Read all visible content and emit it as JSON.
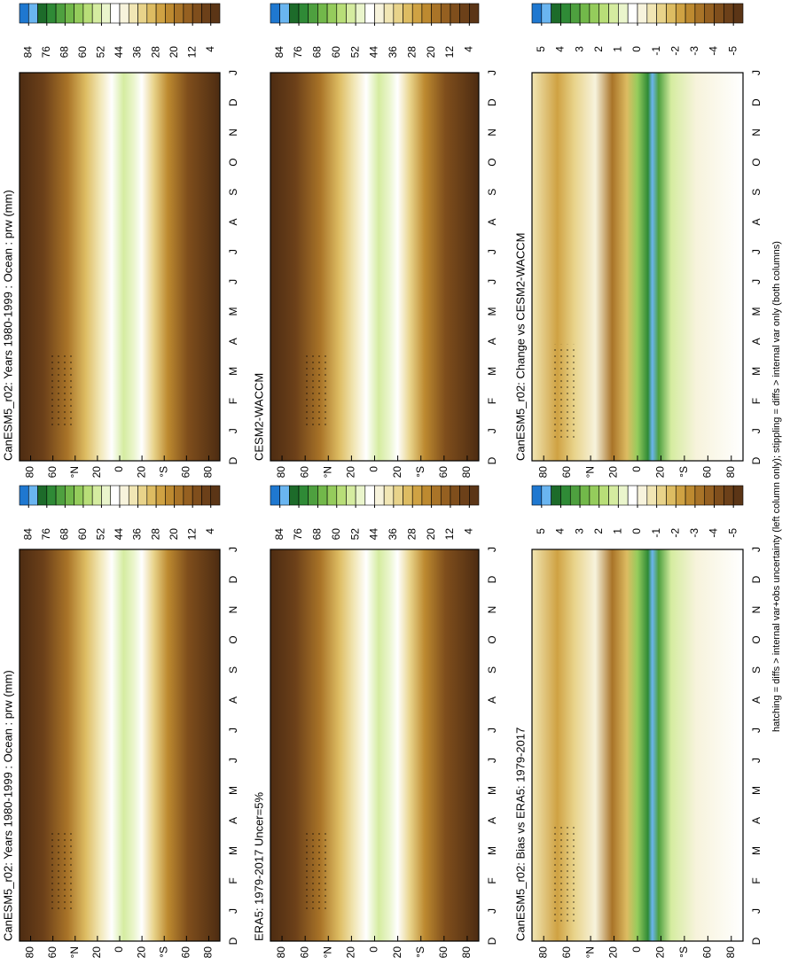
{
  "chart_data": [
    {
      "type": "contour",
      "title": "CanESM5_r02: Years 1980-1999 : Ocean : prw (mm)",
      "categories": [
        "D",
        "J",
        "F",
        "M",
        "A",
        "M",
        "J",
        "J",
        "A",
        "S",
        "O",
        "N",
        "D",
        "J"
      ],
      "ylim": [
        -90,
        90
      ],
      "yticks": [
        80,
        60,
        {
          "value": 40,
          "label": "°N"
        },
        20,
        0,
        {
          "value": -20,
          "label": "20"
        },
        {
          "value": -40,
          "label": "°S"
        },
        {
          "value": -60,
          "label": "60"
        },
        {
          "value": -80,
          "label": "80"
        }
      ],
      "colorbar": {
        "clim": [
          88,
          0
        ],
        "ticks": [
          84,
          76,
          68,
          60,
          52,
          44,
          36,
          28,
          20,
          12,
          4
        ],
        "colors": [
          "#1f78d0",
          "#6ab5f0",
          "#1d6b2a",
          "#2f8a36",
          "#4ea03f",
          "#72b84a",
          "#95cc5c",
          "#b8de78",
          "#d5eca0",
          "#eaf5cc",
          "#ffffff",
          "#f7f3dc",
          "#f1e6b4",
          "#e8d38a",
          "#ddbc62",
          "#cfa243",
          "#bd8a30",
          "#a97428",
          "#956021",
          "#7f4e1c",
          "#6c4019",
          "#5b3516"
        ]
      }
    },
    {
      "type": "contour",
      "title": "CESM2-WACCM",
      "categories": [
        "D",
        "J",
        "F",
        "M",
        "A",
        "M",
        "J",
        "J",
        "A",
        "S",
        "O",
        "N",
        "D",
        "J"
      ],
      "ylim": [
        -90,
        90
      ],
      "yticks": [
        80,
        60,
        {
          "value": 40,
          "label": "°N"
        },
        20,
        0,
        {
          "value": -20,
          "label": "20"
        },
        {
          "value": -40,
          "label": "°S"
        },
        {
          "value": -60,
          "label": "60"
        },
        {
          "value": -80,
          "label": "80"
        }
      ],
      "colorbar": {
        "clim": [
          88,
          0
        ],
        "ticks": [
          84,
          76,
          68,
          60,
          52,
          44,
          36,
          28,
          20,
          12,
          4
        ],
        "colors": [
          "#1f78d0",
          "#6ab5f0",
          "#1d6b2a",
          "#2f8a36",
          "#4ea03f",
          "#72b84a",
          "#95cc5c",
          "#b8de78",
          "#d5eca0",
          "#eaf5cc",
          "#ffffff",
          "#f7f3dc",
          "#f1e6b4",
          "#e8d38a",
          "#ddbc62",
          "#cfa243",
          "#bd8a30",
          "#a97428",
          "#956021",
          "#7f4e1c",
          "#6c4019",
          "#5b3516"
        ]
      }
    },
    {
      "type": "difference",
      "title": "CanESM5_r02: Change vs CESM2-WACCM",
      "categories": [
        "D",
        "J",
        "F",
        "M",
        "A",
        "M",
        "J",
        "J",
        "A",
        "S",
        "O",
        "N",
        "D",
        "J"
      ],
      "ylim": [
        -90,
        90
      ],
      "yticks": [
        80,
        60,
        {
          "value": 40,
          "label": "°N"
        },
        20,
        0,
        {
          "value": -20,
          "label": "20"
        },
        {
          "value": -40,
          "label": "°S"
        },
        {
          "value": -60,
          "label": "60"
        },
        {
          "value": -80,
          "label": "80"
        }
      ],
      "colorbar": {
        "clim": [
          5.5,
          -5.5
        ],
        "ticks": [
          5,
          4,
          3,
          2,
          1,
          0,
          -1,
          -2,
          -3,
          -4,
          -5
        ],
        "colors": [
          "#1f78d0",
          "#6ab5f0",
          "#1d6b2a",
          "#2f8a36",
          "#4ea03f",
          "#72b84a",
          "#95cc5c",
          "#b8de78",
          "#d5eca0",
          "#eaf5cc",
          "#ffffff",
          "#f7f3dc",
          "#f1e6b4",
          "#e8d38a",
          "#ddbc62",
          "#cfa243",
          "#bd8a30",
          "#a97428",
          "#956021",
          "#7f4e1c",
          "#6c4019",
          "#5b3516"
        ]
      }
    },
    {
      "type": "contour",
      "title": "CanESM5_r02: Years 1980-1999 : Ocean : prw (mm)",
      "categories": [
        "D",
        "J",
        "F",
        "M",
        "A",
        "M",
        "J",
        "J",
        "A",
        "S",
        "O",
        "N",
        "D",
        "J"
      ],
      "ylim": [
        -90,
        90
      ],
      "yticks": [
        80,
        60,
        {
          "value": 40,
          "label": "°N"
        },
        20,
        0,
        {
          "value": -20,
          "label": "20"
        },
        {
          "value": -40,
          "label": "°S"
        },
        {
          "value": -60,
          "label": "60"
        },
        {
          "value": -80,
          "label": "80"
        }
      ],
      "colorbar": {
        "clim": [
          88,
          0
        ],
        "ticks": [
          84,
          76,
          68,
          60,
          52,
          44,
          36,
          28,
          20,
          12,
          4
        ],
        "colors": [
          "#1f78d0",
          "#6ab5f0",
          "#1d6b2a",
          "#2f8a36",
          "#4ea03f",
          "#72b84a",
          "#95cc5c",
          "#b8de78",
          "#d5eca0",
          "#eaf5cc",
          "#ffffff",
          "#f7f3dc",
          "#f1e6b4",
          "#e8d38a",
          "#ddbc62",
          "#cfa243",
          "#bd8a30",
          "#a97428",
          "#956021",
          "#7f4e1c",
          "#6c4019",
          "#5b3516"
        ]
      }
    },
    {
      "type": "contour",
      "title": "ERA5: 1979-2017 Uncer=5%",
      "categories": [
        "D",
        "J",
        "F",
        "M",
        "A",
        "M",
        "J",
        "J",
        "A",
        "S",
        "O",
        "N",
        "D",
        "J"
      ],
      "ylim": [
        -90,
        90
      ],
      "yticks": [
        80,
        60,
        {
          "value": 40,
          "label": "°N"
        },
        20,
        0,
        {
          "value": -20,
          "label": "20"
        },
        {
          "value": -40,
          "label": "°S"
        },
        {
          "value": -60,
          "label": "60"
        },
        {
          "value": -80,
          "label": "80"
        }
      ],
      "colorbar": {
        "clim": [
          88,
          0
        ],
        "ticks": [
          84,
          76,
          68,
          60,
          52,
          44,
          36,
          28,
          20,
          12,
          4
        ],
        "colors": [
          "#1f78d0",
          "#6ab5f0",
          "#1d6b2a",
          "#2f8a36",
          "#4ea03f",
          "#72b84a",
          "#95cc5c",
          "#b8de78",
          "#d5eca0",
          "#eaf5cc",
          "#ffffff",
          "#f7f3dc",
          "#f1e6b4",
          "#e8d38a",
          "#ddbc62",
          "#cfa243",
          "#bd8a30",
          "#a97428",
          "#956021",
          "#7f4e1c",
          "#6c4019",
          "#5b3516"
        ]
      }
    },
    {
      "type": "difference",
      "title": "CanESM5_r02: Bias vs ERA5: 1979-2017",
      "categories": [
        "D",
        "J",
        "F",
        "M",
        "A",
        "M",
        "J",
        "J",
        "A",
        "S",
        "O",
        "N",
        "D",
        "J"
      ],
      "ylim": [
        -90,
        90
      ],
      "yticks": [
        80,
        60,
        {
          "value": 40,
          "label": "°N"
        },
        20,
        0,
        {
          "value": -20,
          "label": "20"
        },
        {
          "value": -40,
          "label": "°S"
        },
        {
          "value": -60,
          "label": "60"
        },
        {
          "value": -80,
          "label": "80"
        }
      ],
      "colorbar": {
        "clim": [
          5.5,
          -5.5
        ],
        "ticks": [
          5,
          4,
          3,
          2,
          1,
          0,
          -1,
          -2,
          -3,
          -4,
          -5
        ],
        "colors": [
          "#1f78d0",
          "#6ab5f0",
          "#1d6b2a",
          "#2f8a36",
          "#4ea03f",
          "#72b84a",
          "#95cc5c",
          "#b8de78",
          "#d5eca0",
          "#eaf5cc",
          "#ffffff",
          "#f7f3dc",
          "#f1e6b4",
          "#e8d38a",
          "#ddbc62",
          "#cfa243",
          "#bd8a30",
          "#a97428",
          "#956021",
          "#7f4e1c",
          "#6c4019",
          "#5b3516"
        ]
      }
    }
  ],
  "note": "hatching = diffs > internal var+obs uncertainty (left column only); stippling = diffs > internal var only (both columns)"
}
